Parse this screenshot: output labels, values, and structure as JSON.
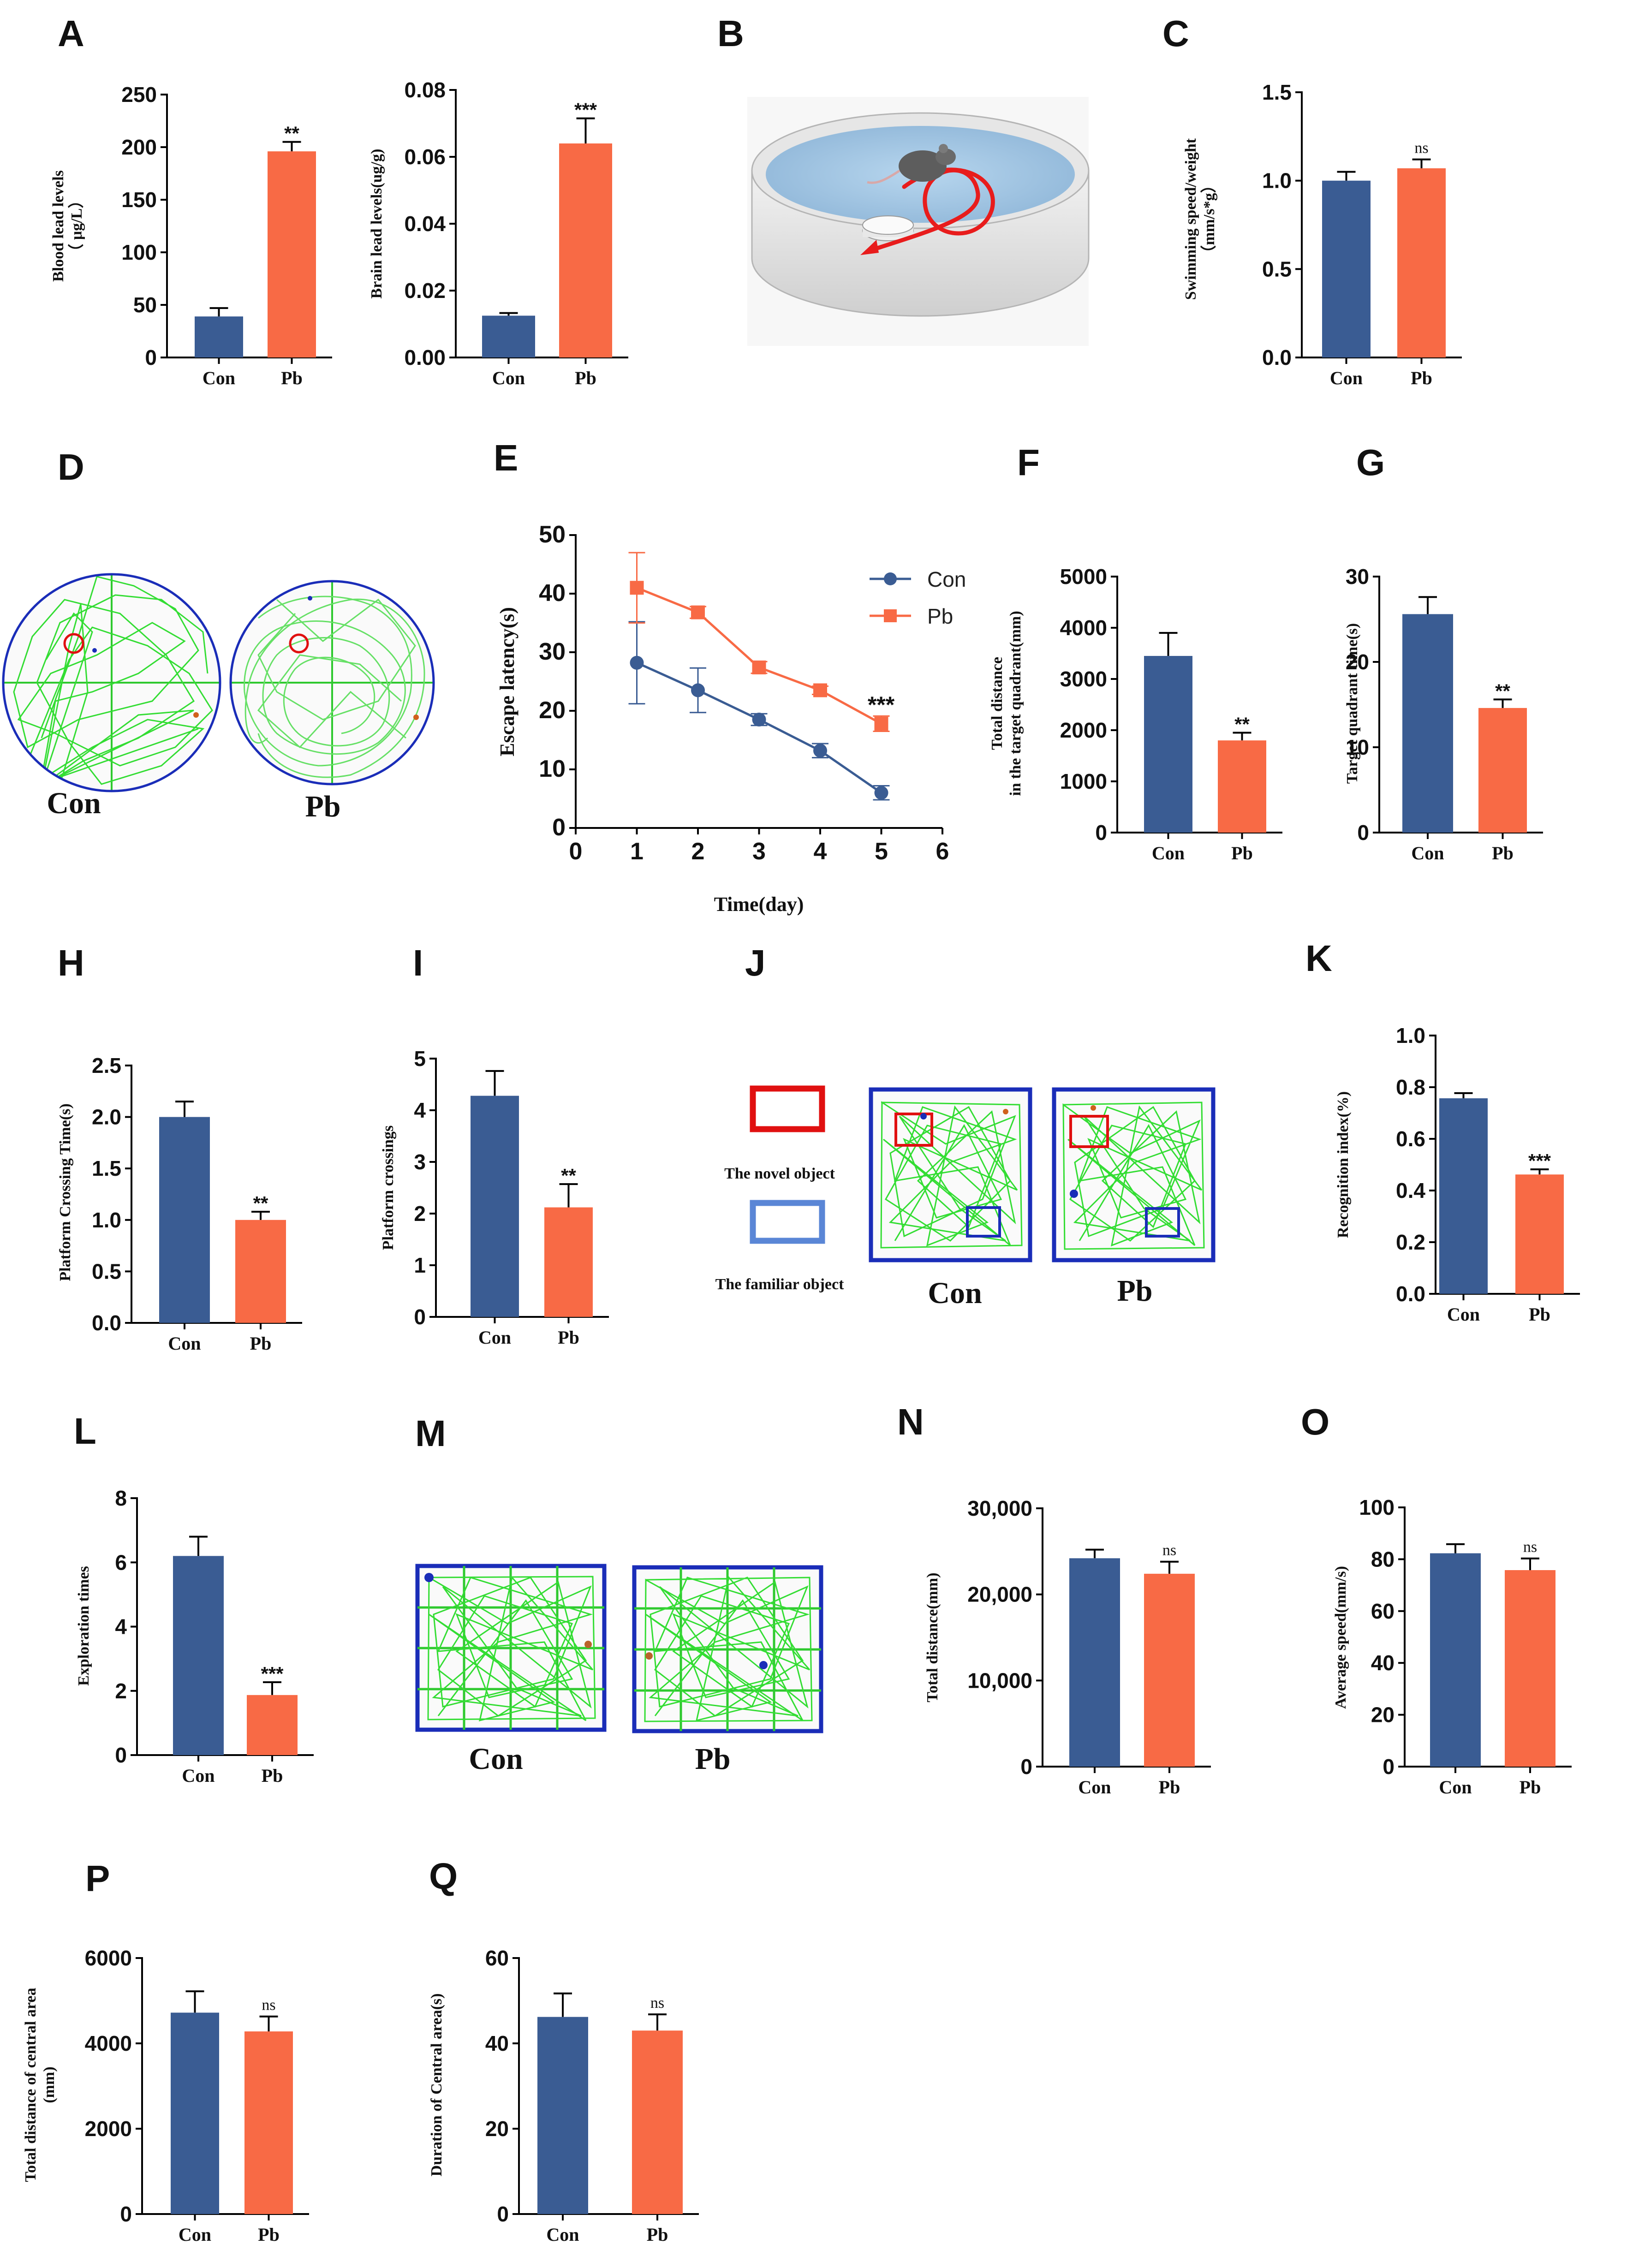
{
  "colors": {
    "con": "#3a5c93",
    "pb": "#f86a45",
    "axis": "#000000",
    "track": "#22dd22",
    "maze_border": "#1a2db8",
    "novel": "#e01010",
    "familiar": "#5a86d6"
  },
  "chart_data": [
    {
      "id": "A1",
      "panel": "A",
      "type": "bar",
      "categories": [
        "Con",
        "Pb"
      ],
      "values": [
        39,
        196
      ],
      "errors": [
        8,
        9
      ],
      "ylabel_lines": [
        "Blood lead levels",
        "（ μg/L）"
      ],
      "ylim": [
        0,
        250
      ],
      "ticks": [
        "0",
        "50",
        "100",
        "150",
        "200",
        "250"
      ],
      "sig": "**"
    },
    {
      "id": "A2",
      "type": "bar",
      "categories": [
        "Con",
        "Pb"
      ],
      "values": [
        0.0125,
        0.064
      ],
      "errors": [
        0.0008,
        0.0075
      ],
      "ylabel_lines": [
        "Brain lead levels(ug/g)"
      ],
      "ylim": [
        0,
        0.08
      ],
      "ticks": [
        "0.00",
        "0.02",
        "0.04",
        "0.06",
        "0.08"
      ],
      "sig": "***"
    },
    {
      "id": "C",
      "panel": "C",
      "type": "bar",
      "categories": [
        "Con",
        "Pb"
      ],
      "values": [
        1.0,
        1.07
      ],
      "errors": [
        0.05,
        0.05
      ],
      "ylabel_lines": [
        "Swimming speed/weight",
        "（mm/s*g）"
      ],
      "ylim": [
        0,
        1.5
      ],
      "ticks": [
        "0.0",
        "0.5",
        "1.0",
        "1.5"
      ],
      "sig": "ns"
    },
    {
      "id": "E",
      "panel": "E",
      "type": "line",
      "xlabel": "Time(day)",
      "ylabel": "Escape latency(s)",
      "xlim": [
        0,
        6
      ],
      "ylim": [
        0,
        50
      ],
      "xticks": [
        "0",
        "1",
        "2",
        "3",
        "4",
        "5",
        "6"
      ],
      "yticks": [
        "0",
        "10",
        "20",
        "30",
        "40",
        "50"
      ],
      "x": [
        1,
        2,
        3,
        4,
        5
      ],
      "series": [
        {
          "name": "Con",
          "values": [
            28.2,
            23.5,
            18.5,
            13.2,
            6.0
          ],
          "errors": [
            7,
            3.8,
            1,
            1.2,
            1.2
          ]
        },
        {
          "name": "Pb",
          "values": [
            41.0,
            36.8,
            27.4,
            23.5,
            17.8
          ],
          "errors": [
            6,
            1,
            1,
            0.7,
            1.3
          ]
        }
      ],
      "sig": "***"
    },
    {
      "id": "F",
      "panel": "F",
      "type": "bar",
      "categories": [
        "Con",
        "Pb"
      ],
      "values": [
        3450,
        1800
      ],
      "errors": [
        450,
        150
      ],
      "ylabel_lines": [
        "Total distance",
        "in the target quadrant(mm)"
      ],
      "ylim": [
        0,
        5000
      ],
      "ticks": [
        "0",
        "1000",
        "2000",
        "3000",
        "4000",
        "5000"
      ],
      "sig": "**"
    },
    {
      "id": "G",
      "panel": "G",
      "type": "bar",
      "categories": [
        "Con",
        "Pb"
      ],
      "values": [
        25.6,
        14.6
      ],
      "errors": [
        2,
        1
      ],
      "ylabel_lines": [
        "Target quadrant time(s)"
      ],
      "ylim": [
        0,
        30
      ],
      "ticks": [
        "0",
        "10",
        "20",
        "30"
      ],
      "sig": "**"
    },
    {
      "id": "H",
      "panel": "H",
      "type": "bar",
      "categories": [
        "Con",
        "Pb"
      ],
      "values": [
        2.0,
        1.0
      ],
      "errors": [
        0.15,
        0.08
      ],
      "ylabel_lines": [
        "Platform Crossing Time(s)"
      ],
      "ylim": [
        0,
        2.5
      ],
      "ticks": [
        "0.0",
        "0.5",
        "1.0",
        "1.5",
        "2.0",
        "2.5"
      ],
      "sig": "**"
    },
    {
      "id": "I",
      "panel": "I",
      "type": "bar",
      "categories": [
        "Con",
        "Pb"
      ],
      "values": [
        4.28,
        2.12
      ],
      "errors": [
        0.48,
        0.45
      ],
      "ylabel_lines": [
        "Platform crossings"
      ],
      "ylim": [
        0,
        5
      ],
      "ticks": [
        "0",
        "1",
        "2",
        "3",
        "4",
        "5"
      ],
      "sig": "**"
    },
    {
      "id": "K",
      "panel": "K",
      "type": "bar",
      "categories": [
        "Con",
        "Pb"
      ],
      "values": [
        0.757,
        0.462
      ],
      "errors": [
        0.02,
        0.02
      ],
      "ylabel_lines": [
        "Recognition index(%)"
      ],
      "ylim": [
        0,
        1.0
      ],
      "ticks": [
        "0.0",
        "0.2",
        "0.4",
        "0.6",
        "0.8",
        "1.0"
      ],
      "sig": "***"
    },
    {
      "id": "L",
      "panel": "L",
      "type": "bar",
      "categories": [
        "Con",
        "Pb"
      ],
      "values": [
        6.2,
        1.87
      ],
      "errors": [
        0.6,
        0.4
      ],
      "ylabel_lines": [
        "Exploration times"
      ],
      "ylim": [
        0,
        8
      ],
      "ticks": [
        "0",
        "2",
        "4",
        "6",
        "8"
      ],
      "sig": "***"
    },
    {
      "id": "N",
      "panel": "N",
      "type": "bar",
      "categories": [
        "Con",
        "Pb"
      ],
      "values": [
        24200,
        22400
      ],
      "errors": [
        1000,
        1400
      ],
      "ylabel_lines": [
        "Total distance(mm)"
      ],
      "ylim": [
        0,
        30000
      ],
      "ticks": [
        "0",
        "10,000",
        "20,000",
        "30,000"
      ],
      "sig": "ns"
    },
    {
      "id": "O",
      "panel": "O",
      "type": "bar",
      "categories": [
        "Con",
        "Pb"
      ],
      "values": [
        82.3,
        75.8
      ],
      "errors": [
        3.5,
        4.5
      ],
      "ylabel_lines": [
        "Average speed(mm/s)"
      ],
      "ylim": [
        0,
        100
      ],
      "ticks": [
        "0",
        "20",
        "40",
        "60",
        "80",
        "100"
      ],
      "sig": "ns"
    },
    {
      "id": "P",
      "panel": "P",
      "type": "bar",
      "categories": [
        "Con",
        "Pb"
      ],
      "values": [
        4720,
        4280
      ],
      "errors": [
        500,
        350
      ],
      "ylabel_lines": [
        "Total distance of central area",
        "(mm)"
      ],
      "ylim": [
        0,
        6000
      ],
      "ticks": [
        "0",
        "2000",
        "4000",
        "6000"
      ],
      "sig": "ns"
    },
    {
      "id": "Q",
      "panel": "Q",
      "type": "bar",
      "categories": [
        "Con",
        "Pb"
      ],
      "values": [
        46.2,
        43.0
      ],
      "errors": [
        5.5,
        3.8
      ],
      "ylabel_lines": [
        "Duration of Central area(s)"
      ],
      "ylim": [
        0,
        60
      ],
      "ticks": [
        "0",
        "20",
        "40",
        "60"
      ],
      "sig": "ns"
    }
  ],
  "illustrations": {
    "B": {
      "panel": "B"
    },
    "D": {
      "panel": "D",
      "groups": [
        "Con",
        "Pb"
      ]
    },
    "J": {
      "panel": "J",
      "novel_label": "The novel object",
      "familiar_label": "The familiar object",
      "groups": [
        "Con",
        "Pb"
      ]
    },
    "M": {
      "panel": "M",
      "groups": [
        "Con",
        "Pb"
      ]
    }
  }
}
